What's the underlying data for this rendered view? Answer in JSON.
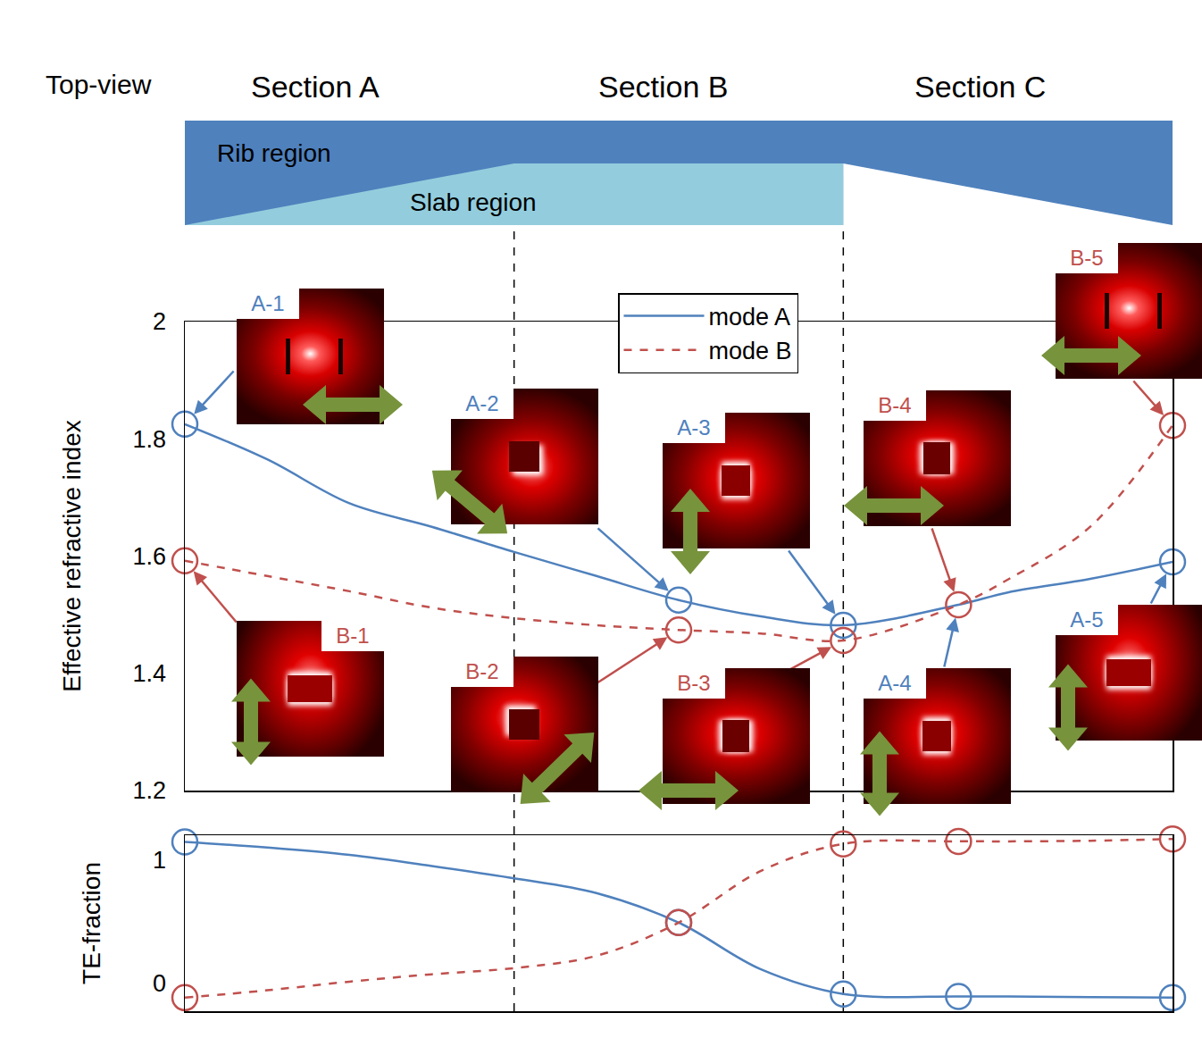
{
  "chart_data": {
    "type": "line",
    "xlim": [
      0,
      3
    ],
    "tick_labels": "y",
    "grid": false,
    "legend": "top",
    "top_view": {
      "label": "Top-view",
      "sections": [
        "Section A",
        "Section B",
        "Section C"
      ],
      "rib_label": "Rib region",
      "slab_label": "Slab region",
      "section_boundaries": [
        1,
        2
      ]
    },
    "panels": [
      {
        "ylabel": "Effective refractive index",
        "ylim": [
          1.2,
          2
        ],
        "yticks": [
          1.2,
          1.4,
          1.6,
          1.8,
          2
        ],
        "series": [
          {
            "name": "mode A",
            "color": "#4f81bd",
            "line_style": "solid",
            "marker": "circle-open",
            "x": [
              0,
              0.25,
              0.5,
              0.75,
              1,
              1.25,
              1.5,
              1.75,
              2,
              2.35,
              2.5,
              2.75,
              3
            ],
            "values": [
              1.825,
              1.765,
              1.69,
              1.65,
              1.607,
              1.566,
              1.525,
              1.497,
              1.482,
              1.517,
              1.538,
              1.561,
              1.59
            ],
            "circled_x": [
              0,
              1.5,
              2,
              3
            ]
          },
          {
            "name": "mode B",
            "color": "#c0504d",
            "line_style": "dash",
            "marker": "circle-open",
            "x": [
              0,
              0.25,
              0.5,
              0.75,
              1,
              1.25,
              1.5,
              1.75,
              2,
              2.35,
              2.5,
              2.75,
              3
            ],
            "values": [
              1.592,
              1.566,
              1.54,
              1.512,
              1.494,
              1.482,
              1.474,
              1.468,
              1.456,
              1.517,
              1.56,
              1.65,
              1.823
            ],
            "circled_x": [
              0,
              1.5,
              2,
              2.35,
              3
            ]
          }
        ]
      },
      {
        "ylabel": "TE-fraction",
        "ylim": [
          -0.23,
          1.2
        ],
        "yticks": [
          0,
          1
        ],
        "series": [
          {
            "name": "mode A",
            "color": "#4f81bd",
            "line_style": "solid",
            "marker": "circle-open",
            "x": [
              0,
              0.25,
              0.5,
              0.75,
              1,
              1.25,
              1.5,
              1.75,
              2,
              2.35,
              2.5,
              2.75,
              3
            ],
            "values": [
              1.146,
              1.1,
              1.04,
              0.95,
              0.85,
              0.73,
              0.49,
              0.11,
              -0.09,
              -0.11,
              -0.11,
              -0.115,
              -0.12
            ],
            "circled_x": [
              0,
              1.5,
              2,
              2.35,
              3
            ]
          },
          {
            "name": "mode B",
            "color": "#c0504d",
            "line_style": "dash",
            "marker": "circle-open",
            "x": [
              0,
              0.25,
              0.5,
              0.75,
              1,
              1.25,
              1.5,
              1.75,
              2,
              2.35,
              2.5,
              2.75,
              3
            ],
            "values": [
              -0.12,
              -0.06,
              0.01,
              0.07,
              0.12,
              0.22,
              0.49,
              0.91,
              1.13,
              1.15,
              1.15,
              1.155,
              1.17
            ],
            "circled_x": [
              0,
              1.5,
              2,
              2.35,
              3
            ]
          }
        ]
      }
    ],
    "insets": [
      {
        "label": "A-1",
        "series": "mode A",
        "x": 0
      },
      {
        "label": "A-2",
        "series": "mode A",
        "x": 1.5
      },
      {
        "label": "A-3",
        "series": "mode A",
        "x": 2
      },
      {
        "label": "A-4",
        "series": "mode A",
        "x": 2.35
      },
      {
        "label": "A-5",
        "series": "mode A",
        "x": 3
      },
      {
        "label": "B-1",
        "series": "mode B",
        "x": 0
      },
      {
        "label": "B-2",
        "series": "mode B",
        "x": 1.5
      },
      {
        "label": "B-3",
        "series": "mode B",
        "x": 2
      },
      {
        "label": "B-4",
        "series": "mode B",
        "x": 2.35
      },
      {
        "label": "B-5",
        "series": "mode B",
        "x": 3
      }
    ]
  }
}
